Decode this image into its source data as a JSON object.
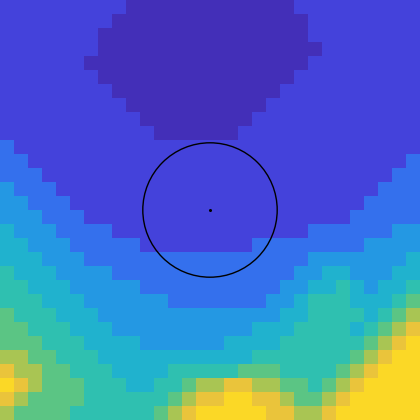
{
  "chart_data": {
    "type": "heatmap",
    "tick_labels": false,
    "clim": [
      0,
      9
    ],
    "cells": [
      [
        1,
        1,
        1,
        1,
        1,
        1,
        1,
        1,
        1,
        0,
        0,
        0,
        0,
        0,
        0,
        0,
        0,
        0,
        0,
        0,
        0,
        1,
        1,
        1,
        1,
        1,
        1,
        1,
        1,
        1
      ],
      [
        1,
        1,
        1,
        1,
        1,
        1,
        1,
        1,
        0,
        0,
        0,
        0,
        0,
        0,
        0,
        0,
        0,
        0,
        0,
        0,
        0,
        0,
        1,
        1,
        1,
        1,
        1,
        1,
        1,
        1
      ],
      [
        1,
        1,
        1,
        1,
        1,
        1,
        1,
        0,
        0,
        0,
        0,
        0,
        0,
        0,
        0,
        0,
        0,
        0,
        0,
        0,
        0,
        0,
        1,
        1,
        1,
        1,
        1,
        1,
        1,
        1
      ],
      [
        1,
        1,
        1,
        1,
        1,
        1,
        1,
        0,
        0,
        0,
        0,
        0,
        0,
        0,
        0,
        0,
        0,
        0,
        0,
        0,
        0,
        0,
        0,
        1,
        1,
        1,
        1,
        1,
        1,
        1
      ],
      [
        1,
        1,
        1,
        1,
        1,
        1,
        0,
        0,
        0,
        0,
        0,
        0,
        0,
        0,
        0,
        0,
        0,
        0,
        0,
        0,
        0,
        0,
        1,
        1,
        1,
        1,
        1,
        1,
        1,
        1
      ],
      [
        1,
        1,
        1,
        1,
        1,
        1,
        1,
        0,
        0,
        0,
        0,
        0,
        0,
        0,
        0,
        0,
        0,
        0,
        0,
        0,
        0,
        1,
        1,
        1,
        1,
        1,
        1,
        1,
        1,
        1
      ],
      [
        1,
        1,
        1,
        1,
        1,
        1,
        1,
        1,
        0,
        0,
        0,
        0,
        0,
        0,
        0,
        0,
        0,
        0,
        0,
        0,
        1,
        1,
        1,
        1,
        1,
        1,
        1,
        1,
        1,
        1
      ],
      [
        1,
        1,
        1,
        1,
        1,
        1,
        1,
        1,
        1,
        0,
        0,
        0,
        0,
        0,
        0,
        0,
        0,
        0,
        0,
        1,
        1,
        1,
        1,
        1,
        1,
        1,
        1,
        1,
        1,
        1
      ],
      [
        1,
        1,
        1,
        1,
        1,
        1,
        1,
        1,
        1,
        1,
        0,
        0,
        0,
        0,
        0,
        0,
        0,
        0,
        1,
        1,
        1,
        1,
        1,
        1,
        1,
        1,
        1,
        1,
        1,
        1
      ],
      [
        1,
        1,
        1,
        1,
        1,
        1,
        1,
        1,
        1,
        1,
        1,
        0,
        0,
        0,
        0,
        0,
        0,
        1,
        1,
        1,
        1,
        1,
        1,
        1,
        1,
        1,
        1,
        1,
        1,
        1
      ],
      [
        2,
        1,
        1,
        1,
        1,
        1,
        1,
        1,
        1,
        1,
        1,
        1,
        1,
        1,
        1,
        1,
        1,
        1,
        1,
        1,
        1,
        1,
        1,
        1,
        1,
        1,
        1,
        1,
        1,
        1
      ],
      [
        2,
        2,
        1,
        1,
        1,
        1,
        1,
        1,
        1,
        1,
        1,
        1,
        1,
        1,
        1,
        1,
        1,
        1,
        1,
        1,
        1,
        1,
        1,
        1,
        1,
        1,
        1,
        1,
        1,
        2
      ],
      [
        2,
        2,
        2,
        1,
        1,
        1,
        1,
        1,
        1,
        1,
        1,
        1,
        1,
        1,
        1,
        1,
        1,
        1,
        1,
        1,
        1,
        1,
        1,
        1,
        1,
        1,
        1,
        1,
        2,
        2
      ],
      [
        3,
        2,
        2,
        2,
        1,
        1,
        1,
        1,
        1,
        1,
        1,
        1,
        1,
        1,
        1,
        1,
        1,
        1,
        1,
        1,
        1,
        1,
        1,
        1,
        1,
        1,
        1,
        2,
        2,
        2
      ],
      [
        3,
        3,
        2,
        2,
        2,
        1,
        1,
        1,
        1,
        1,
        1,
        1,
        1,
        1,
        1,
        1,
        1,
        1,
        1,
        1,
        1,
        1,
        1,
        1,
        1,
        1,
        2,
        2,
        2,
        2
      ],
      [
        3,
        3,
        3,
        2,
        2,
        2,
        1,
        1,
        1,
        1,
        1,
        1,
        1,
        1,
        1,
        1,
        1,
        1,
        1,
        1,
        1,
        1,
        1,
        1,
        1,
        2,
        2,
        2,
        2,
        2
      ],
      [
        4,
        3,
        3,
        3,
        2,
        2,
        2,
        2,
        1,
        1,
        1,
        1,
        1,
        1,
        1,
        1,
        1,
        1,
        1,
        1,
        1,
        1,
        2,
        2,
        2,
        2,
        2,
        2,
        3,
        3
      ],
      [
        4,
        4,
        3,
        3,
        3,
        2,
        2,
        2,
        2,
        2,
        1,
        1,
        1,
        1,
        1,
        1,
        1,
        1,
        2,
        2,
        2,
        2,
        2,
        2,
        2,
        2,
        3,
        3,
        3,
        3
      ],
      [
        4,
        4,
        4,
        3,
        3,
        3,
        2,
        2,
        2,
        2,
        2,
        2,
        2,
        2,
        2,
        2,
        2,
        2,
        2,
        2,
        2,
        2,
        3,
        3,
        3,
        3,
        3,
        3,
        3,
        4
      ],
      [
        5,
        4,
        4,
        4,
        3,
        3,
        3,
        3,
        2,
        2,
        2,
        2,
        2,
        2,
        2,
        2,
        2,
        2,
        2,
        2,
        2,
        3,
        3,
        4,
        4,
        3,
        3,
        3,
        4,
        4
      ],
      [
        5,
        5,
        4,
        4,
        4,
        3,
        3,
        3,
        3,
        3,
        2,
        2,
        2,
        2,
        2,
        2,
        2,
        2,
        2,
        2,
        3,
        3,
        4,
        4,
        5,
        4,
        3,
        4,
        4,
        5
      ],
      [
        5,
        5,
        5,
        4,
        4,
        4,
        3,
        3,
        3,
        3,
        3,
        3,
        2,
        2,
        2,
        2,
        2,
        2,
        2,
        3,
        3,
        4,
        5,
        5,
        5,
        4,
        4,
        4,
        5,
        6
      ],
      [
        6,
        5,
        5,
        5,
        4,
        4,
        4,
        3,
        3,
        3,
        3,
        3,
        3,
        3,
        3,
        3,
        3,
        3,
        3,
        3,
        4,
        4,
        5,
        5,
        5,
        5,
        4,
        5,
        6,
        7
      ],
      [
        6,
        6,
        5,
        5,
        5,
        4,
        4,
        4,
        3,
        3,
        3,
        3,
        3,
        3,
        3,
        3,
        3,
        3,
        4,
        4,
        4,
        5,
        5,
        5,
        5,
        4,
        5,
        6,
        7,
        8
      ],
      [
        6,
        6,
        6,
        5,
        5,
        5,
        4,
        4,
        4,
        4,
        3,
        3,
        3,
        3,
        3,
        3,
        4,
        4,
        4,
        4,
        5,
        5,
        5,
        5,
        5,
        5,
        6,
        7,
        8,
        9
      ],
      [
        7,
        7,
        6,
        6,
        5,
        5,
        5,
        4,
        4,
        4,
        4,
        4,
        4,
        4,
        4,
        4,
        4,
        4,
        5,
        5,
        5,
        5,
        5,
        5,
        5,
        6,
        7,
        8,
        9,
        9
      ],
      [
        8,
        7,
        7,
        6,
        6,
        5,
        5,
        5,
        4,
        4,
        4,
        4,
        5,
        5,
        5,
        5,
        5,
        6,
        6,
        6,
        5,
        5,
        5,
        5,
        6,
        7,
        8,
        9,
        9,
        9
      ],
      [
        9,
        8,
        7,
        6,
        6,
        6,
        5,
        5,
        5,
        4,
        4,
        5,
        5,
        6,
        7,
        7,
        8,
        8,
        7,
        7,
        6,
        6,
        5,
        6,
        7,
        8,
        9,
        9,
        9,
        9
      ],
      [
        8,
        7,
        6,
        6,
        6,
        6,
        5,
        5,
        5,
        5,
        5,
        5,
        6,
        7,
        8,
        8,
        9,
        9,
        8,
        8,
        7,
        6,
        6,
        7,
        8,
        9,
        9,
        9,
        9,
        9
      ],
      [
        7,
        6,
        6,
        6,
        6,
        5,
        5,
        5,
        5,
        5,
        5,
        6,
        7,
        8,
        9,
        9,
        9,
        9,
        9,
        8,
        8,
        7,
        7,
        8,
        9,
        9,
        9,
        9,
        9,
        9
      ]
    ]
  }
}
